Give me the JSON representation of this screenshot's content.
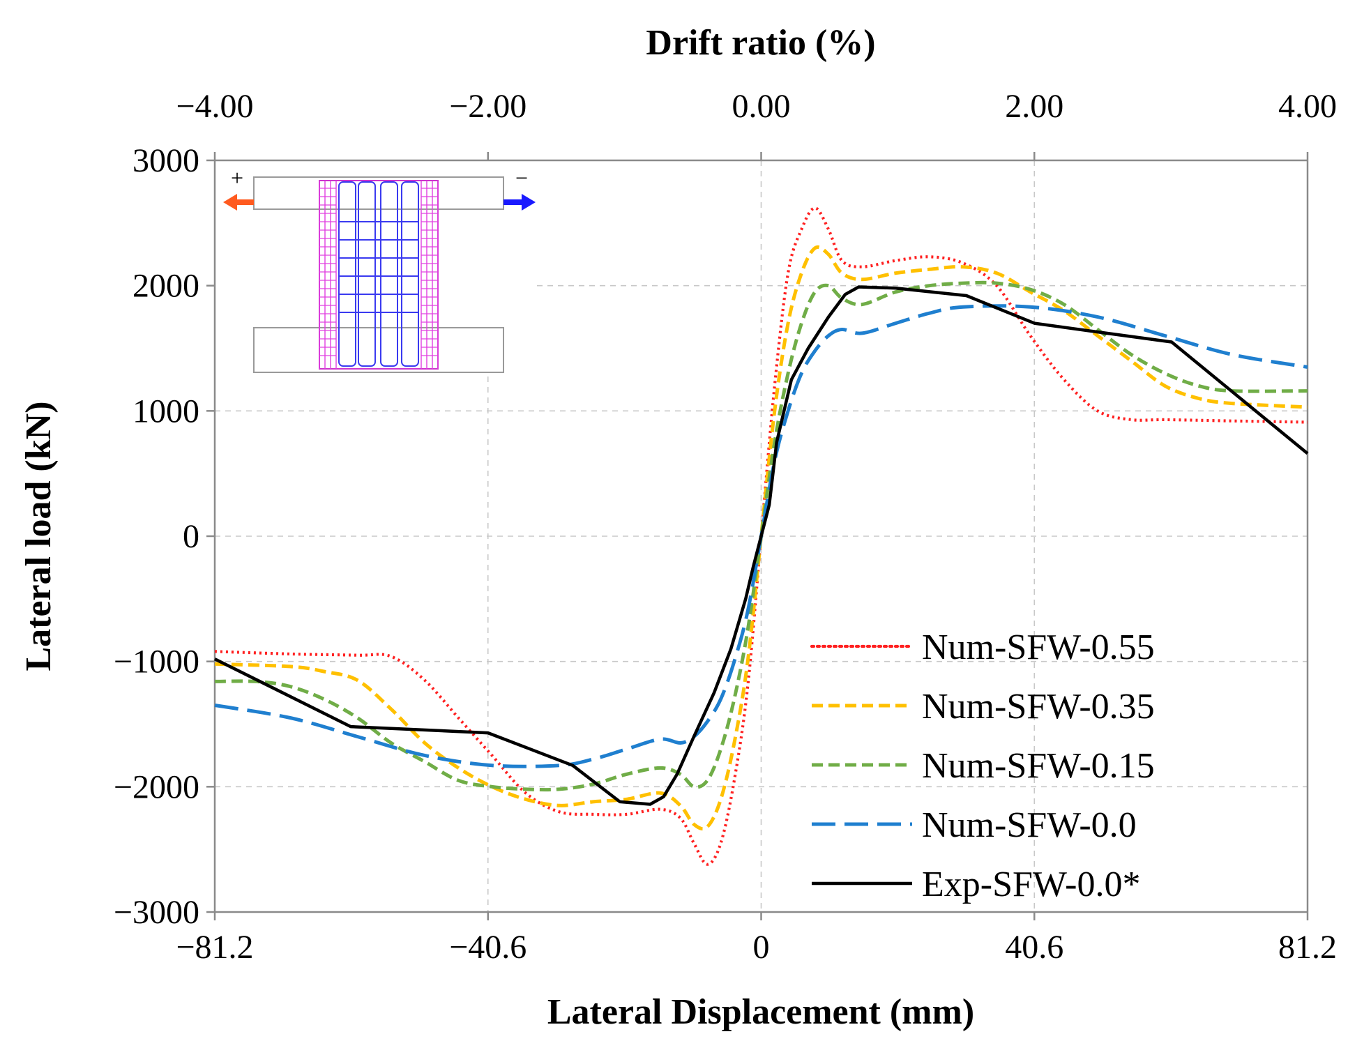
{
  "chart_data": {
    "type": "line",
    "title": "",
    "top_axis": {
      "label": "Drift ratio (%)",
      "ticks": [
        "−4.00",
        "−2.00",
        "0.00",
        "2.00",
        "4.00"
      ],
      "tick_values": [
        -4,
        -2,
        0,
        2,
        4
      ]
    },
    "xlabel": "Lateral Displacement (mm)",
    "ylabel": "Lateral load (kN)",
    "xlim": [
      -81.2,
      81.2
    ],
    "ylim": [
      -3000,
      3000
    ],
    "x_ticks": [
      -81.2,
      -40.6,
      0,
      40.6,
      81.2
    ],
    "x_tick_labels": [
      "−81.2",
      "−40.6",
      "0",
      "40.6",
      "81.2"
    ],
    "y_ticks": [
      -3000,
      -2000,
      -1000,
      0,
      1000,
      2000,
      3000
    ],
    "y_tick_labels": [
      "−3000",
      "−2000",
      "−1000",
      "0",
      "1000",
      "2000",
      "3000"
    ],
    "grid": true,
    "legend_position": "bottom-right",
    "inset": {
      "plus_label": "+",
      "minus_label": "−"
    },
    "series": [
      {
        "name": "Num-SFW-0.55",
        "color": "#ff2020",
        "style": "dotted",
        "x": [
          -81.2,
          -70,
          -60,
          -55,
          -50,
          -45,
          -40,
          -35,
          -30,
          -25,
          -20,
          -15,
          -12,
          -10,
          -8,
          -6,
          -4,
          -2,
          0,
          2,
          4,
          6,
          8,
          10,
          12,
          15,
          20,
          25,
          30,
          35,
          40,
          45,
          50,
          55,
          60,
          70,
          81.2
        ],
        "y": [
          -920,
          -940,
          -950,
          -960,
          -1150,
          -1450,
          -1750,
          -2050,
          -2200,
          -2220,
          -2220,
          -2180,
          -2250,
          -2450,
          -2620,
          -2450,
          -1950,
          -1200,
          0,
          1200,
          2100,
          2450,
          2620,
          2450,
          2200,
          2150,
          2200,
          2230,
          2180,
          2000,
          1600,
          1250,
          1000,
          930,
          930,
          920,
          910
        ]
      },
      {
        "name": "Num-SFW-0.35",
        "color": "#ffc000",
        "style": "dashed",
        "x": [
          -81.2,
          -70,
          -65,
          -60,
          -55,
          -50,
          -45,
          -40,
          -35,
          -30,
          -25,
          -20,
          -15,
          -12,
          -10,
          -8,
          -6,
          -4,
          -2,
          0,
          2,
          4,
          6,
          8,
          10,
          12,
          15,
          20,
          25,
          30,
          35,
          40,
          45,
          50,
          55,
          60,
          65,
          70,
          81.2
        ],
        "y": [
          -1020,
          -1040,
          -1080,
          -1150,
          -1380,
          -1650,
          -1850,
          -2000,
          -2100,
          -2150,
          -2120,
          -2100,
          -2050,
          -2150,
          -2300,
          -2320,
          -2100,
          -1650,
          -1000,
          0,
          1000,
          1700,
          2100,
          2300,
          2250,
          2100,
          2050,
          2100,
          2130,
          2150,
          2100,
          1950,
          1800,
          1600,
          1400,
          1200,
          1100,
          1060,
          1030
        ]
      },
      {
        "name": "Num-SFW-0.15",
        "color": "#70ad47",
        "style": "dashed",
        "x": [
          -81.2,
          -75,
          -70,
          -65,
          -60,
          -55,
          -50,
          -45,
          -40,
          -35,
          -30,
          -25,
          -20,
          -15,
          -12,
          -10,
          -8,
          -6,
          -4,
          -2,
          0,
          2,
          4,
          6,
          8,
          10,
          12,
          15,
          20,
          25,
          30,
          35,
          40,
          45,
          50,
          55,
          60,
          65,
          70,
          81.2
        ],
        "y": [
          -1160,
          -1160,
          -1200,
          -1300,
          -1450,
          -1650,
          -1800,
          -1950,
          -2000,
          -2020,
          -2020,
          -1980,
          -1900,
          -1850,
          -1900,
          -2000,
          -1950,
          -1700,
          -1300,
          -750,
          0,
          750,
          1300,
          1700,
          1950,
          2000,
          1900,
          1850,
          1950,
          2000,
          2020,
          2020,
          1970,
          1850,
          1650,
          1450,
          1300,
          1200,
          1160,
          1160
        ]
      },
      {
        "name": "Num-SFW-0.0",
        "color": "#1f7fcf",
        "style": "longdash",
        "x": [
          -81.2,
          -70,
          -60,
          -50,
          -40,
          -30,
          -25,
          -20,
          -15,
          -12,
          -10,
          -8,
          -6,
          -4,
          -2,
          0,
          2,
          4,
          6,
          8,
          10,
          12,
          15,
          20,
          25,
          30,
          40,
          50,
          60,
          70,
          81.2
        ],
        "y": [
          -1350,
          -1450,
          -1600,
          -1750,
          -1830,
          -1830,
          -1780,
          -1700,
          -1620,
          -1650,
          -1600,
          -1480,
          -1300,
          -1000,
          -600,
          0,
          600,
          1000,
          1300,
          1480,
          1600,
          1650,
          1620,
          1700,
          1780,
          1830,
          1830,
          1750,
          1600,
          1450,
          1350
        ]
      },
      {
        "name": "Exp-SFW-0.0*",
        "color": "#000000",
        "style": "solid",
        "x": [
          -81.2,
          -61.0,
          -40.6,
          -28.0,
          -21.0,
          -16.5,
          -14.5,
          -12.5,
          -10.0,
          -7.0,
          -4.5,
          -2.3,
          -1.2,
          0,
          1.2,
          2.3,
          4.5,
          7.0,
          10.0,
          12.5,
          14.5,
          20.0,
          30.5,
          40.6,
          50.0,
          61.0,
          81.2
        ],
        "y": [
          -980,
          -1520,
          -1570,
          -1830,
          -2120,
          -2140,
          -2080,
          -1900,
          -1600,
          -1250,
          -900,
          -500,
          -250,
          0,
          250,
          750,
          1250,
          1500,
          1750,
          1930,
          1990,
          1980,
          1920,
          1700,
          1630,
          1550,
          660
        ]
      }
    ]
  }
}
